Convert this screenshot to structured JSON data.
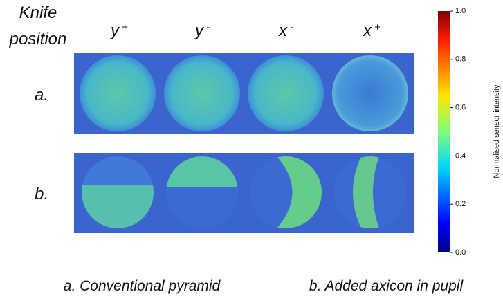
{
  "header": {
    "title": "Knife position",
    "columns": [
      {
        "base": "y",
        "sup": "+"
      },
      {
        "base": "y",
        "sup": "-"
      },
      {
        "base": "x",
        "sup": "-"
      },
      {
        "base": "x",
        "sup": "+"
      }
    ]
  },
  "rows": [
    "a.",
    "b."
  ],
  "colorbar": {
    "label": "Normalised sensor intensity",
    "lim": [
      0,
      1
    ],
    "ticks": [
      {
        "value": 0,
        "label": "0.0"
      },
      {
        "value": 0.2,
        "label": "0.2"
      },
      {
        "value": 0.4,
        "label": "0.4"
      },
      {
        "value": 0.6,
        "label": "0.6"
      },
      {
        "value": 0.8,
        "label": "0.8"
      },
      {
        "value": 1,
        "label": "1.0"
      }
    ]
  },
  "captions": [
    "a. Conventional pyramid",
    "b. Added axicon in pupil"
  ]
}
